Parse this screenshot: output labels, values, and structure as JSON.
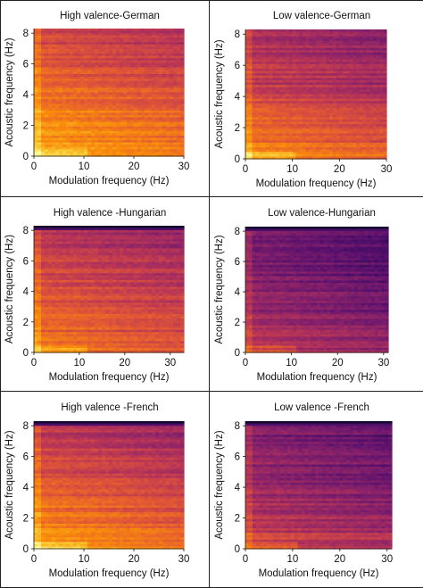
{
  "chart_data": [
    {
      "type": "heatmap",
      "title": "High valence-German",
      "xlabel": "Modulation frequency (Hz)",
      "ylabel": "Acoustic frequency (Hz)",
      "xlim": [
        0,
        30
      ],
      "ylim": [
        0,
        8.3
      ],
      "xticks": [
        "0",
        "10",
        "20",
        "30"
      ],
      "yticks": [
        "0",
        "2",
        "4",
        "6",
        "8"
      ],
      "colormap": "inferno",
      "intensity_profile": {
        "low_freq": 0.82,
        "mid_freq": 0.68,
        "high_freq": 0.55,
        "top_edge_dark": false
      }
    },
    {
      "type": "heatmap",
      "title": "Low valence-German",
      "xlabel": "Modulation frequency (Hz)",
      "ylabel": "Acoustic frequency (Hz)",
      "xlim": [
        0,
        30
      ],
      "ylim": [
        0,
        8.3
      ],
      "xticks": [
        "0",
        "10",
        "20",
        "30"
      ],
      "yticks": [
        "0",
        "2",
        "4",
        "6",
        "8"
      ],
      "colormap": "inferno",
      "intensity_profile": {
        "low_freq": 0.75,
        "mid_freq": 0.55,
        "high_freq": 0.45,
        "top_edge_dark": false
      }
    },
    {
      "type": "heatmap",
      "title": "High valence -Hungarian",
      "xlabel": "Modulation frequency (Hz)",
      "ylabel": "Acoustic frequency (Hz)",
      "xlim": [
        0,
        33
      ],
      "ylim": [
        0,
        8.3
      ],
      "xticks": [
        "0",
        "10",
        "20",
        "30"
      ],
      "yticks": [
        "0",
        "2",
        "4",
        "6",
        "8"
      ],
      "colormap": "inferno",
      "intensity_profile": {
        "low_freq": 0.7,
        "mid_freq": 0.6,
        "high_freq": 0.5,
        "top_edge_dark": true
      }
    },
    {
      "type": "heatmap",
      "title": "Low valence-Hungarian",
      "xlabel": "Modulation frequency (Hz)",
      "ylabel": "Acoustic frequency (Hz)",
      "xlim": [
        0,
        31
      ],
      "ylim": [
        0,
        8.3
      ],
      "xticks": [
        "0",
        "10",
        "20",
        "30"
      ],
      "yticks": [
        "0",
        "2",
        "4",
        "6",
        "8"
      ],
      "colormap": "inferno",
      "intensity_profile": {
        "low_freq": 0.5,
        "mid_freq": 0.38,
        "high_freq": 0.33,
        "top_edge_dark": true
      }
    },
    {
      "type": "heatmap",
      "title": "High valence -French",
      "xlabel": "Modulation frequency (Hz)",
      "ylabel": "Acoustic frequency (Hz)",
      "xlim": [
        0,
        30
      ],
      "ylim": [
        0,
        8.3
      ],
      "xticks": [
        "0",
        "10",
        "20",
        "30"
      ],
      "yticks": [
        "0",
        "2",
        "4",
        "6",
        "8"
      ],
      "colormap": "inferno",
      "intensity_profile": {
        "low_freq": 0.8,
        "mid_freq": 0.62,
        "high_freq": 0.5,
        "top_edge_dark": true
      }
    },
    {
      "type": "heatmap",
      "title": "Low valence -French",
      "xlabel": "Modulation frequency (Hz)",
      "ylabel": "Acoustic frequency (Hz)",
      "xlim": [
        0,
        31
      ],
      "ylim": [
        0,
        8.3
      ],
      "xticks": [
        "0",
        "10",
        "20",
        "30"
      ],
      "yticks": [
        "0",
        "2",
        "4",
        "6",
        "8"
      ],
      "colormap": "inferno",
      "intensity_profile": {
        "low_freq": 0.58,
        "mid_freq": 0.42,
        "high_freq": 0.36,
        "top_edge_dark": true
      }
    }
  ]
}
